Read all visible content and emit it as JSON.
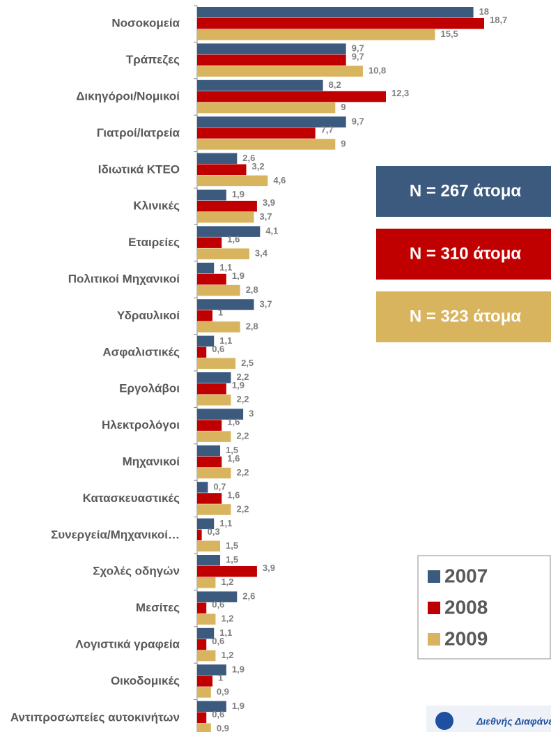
{
  "chart_data": {
    "type": "bar",
    "orientation": "horizontal",
    "categories": [
      "Νοσοκομεία",
      "Τράπεζες",
      "Δικηγόροι/Νομικοί",
      "Γιατροί/Ιατρεία",
      "Ιδιωτικά ΚΤΕΟ",
      "Κλινικές",
      "Εταιρείες",
      "Πολιτικοί Μηχανικοί",
      "Υδραυλικοί",
      "Ασφαλιστικές",
      "Εργολάβοι",
      "Ηλεκτρολόγοι",
      "Μηχανικοί",
      "Κατασκευαστικές",
      "Συνεργεία/Μηχανικοί…",
      "Σχολές οδηγών",
      "Μεσίτες",
      "Λογιστικά γραφεία",
      "Οικοδομικές",
      "Αντιπροσωπείες αυτοκινήτων"
    ],
    "series": [
      {
        "name": "2007",
        "color": "#3b5a7e",
        "note": "N = 267 άτομα",
        "values": [
          18,
          9.7,
          8.2,
          9.7,
          2.6,
          1.9,
          4.1,
          1.1,
          3.7,
          1.1,
          2.2,
          3,
          1.5,
          0.7,
          1.1,
          1.5,
          2.6,
          1.1,
          1.9,
          1.9
        ],
        "value_labels": [
          "18",
          "9,7",
          "8,2",
          "9,7",
          "2,6",
          "1,9",
          "4,1",
          "1,1",
          "3,7",
          "1,1",
          "2,2",
          "3",
          "1,5",
          "0,7",
          "1,1",
          "1,5",
          "2,6",
          "1,1",
          "1,9",
          "1,9"
        ]
      },
      {
        "name": "2008",
        "color": "#c00000",
        "note": "N = 310 άτομα",
        "values": [
          18.7,
          9.7,
          12.3,
          7.7,
          3.2,
          3.9,
          1.6,
          1.9,
          1,
          0.6,
          1.9,
          1.6,
          1.6,
          1.6,
          0.3,
          3.9,
          0.6,
          0.6,
          1,
          0.6
        ],
        "value_labels": [
          "18,7",
          "9,7",
          "12,3",
          "7,7",
          "3,2",
          "3,9",
          "1,6",
          "1,9",
          "1",
          "0,6",
          "1,9",
          "1,6",
          "1,6",
          "1,6",
          "0,3",
          "3,9",
          "0,6",
          "0,6",
          "1",
          "0,6"
        ]
      },
      {
        "name": "2009",
        "color": "#d8b45e",
        "note": "N = 323 άτομα",
        "values": [
          15.5,
          10.8,
          9,
          9,
          4.6,
          3.7,
          3.4,
          2.8,
          2.8,
          2.5,
          2.2,
          2.2,
          2.2,
          2.2,
          1.5,
          1.2,
          1.2,
          1.2,
          0.9,
          0.9
        ],
        "value_labels": [
          "15,5",
          "10,8",
          "9",
          "9",
          "4,6",
          "3,7",
          "3,4",
          "2,8",
          "2,8",
          "2,5",
          "2,2",
          "2,2",
          "2,2",
          "2,2",
          "1,5",
          "1,2",
          "1,2",
          "1,2",
          "0,9",
          "0,9"
        ]
      }
    ],
    "logo_text": "Διεθνής Διαφάνεια"
  }
}
